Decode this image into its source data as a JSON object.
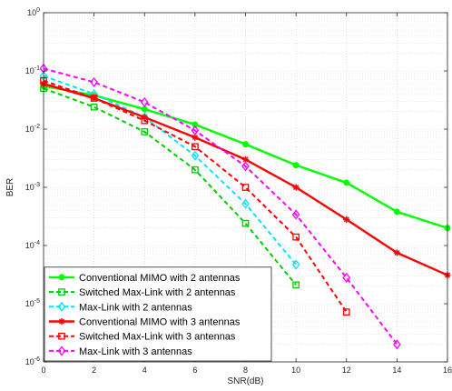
{
  "chart_data": {
    "type": "line",
    "xlabel": "SNR(dB)",
    "ylabel": "BER",
    "xlim": [
      0,
      16
    ],
    "ylim": [
      1e-06,
      1
    ],
    "yscale": "log",
    "x_ticks": [
      "0",
      "2",
      "4",
      "6",
      "8",
      "10",
      "12",
      "14",
      "16"
    ],
    "y_ticks": [
      {
        "base": "10",
        "exp": "0",
        "value": 1
      },
      {
        "base": "10",
        "exp": "-1",
        "value": 0.1
      },
      {
        "base": "10",
        "exp": "-2",
        "value": 0.01
      },
      {
        "base": "10",
        "exp": "-3",
        "value": 0.001
      },
      {
        "base": "10",
        "exp": "-4",
        "value": 0.0001
      },
      {
        "base": "10",
        "exp": "-5",
        "value": 1e-05
      },
      {
        "base": "10",
        "exp": "-6",
        "value": 1e-06
      }
    ],
    "grid": true,
    "legend_position": "bottom-left",
    "series": [
      {
        "name": "Conventional MIMO with 2 antennas",
        "color": "#00ff00",
        "dash": "solid",
        "marker": "circle",
        "x": [
          0,
          2,
          4,
          6,
          8,
          10,
          12,
          14,
          16
        ],
        "y": [
          0.055,
          0.038,
          0.022,
          0.012,
          0.0055,
          0.0024,
          0.0012,
          0.00038,
          0.0002
        ]
      },
      {
        "name": "Switched Max-Link with 2 antennas",
        "color": "#00cc00",
        "dash": "dashed",
        "marker": "square",
        "x": [
          0,
          2,
          4,
          6,
          8,
          10
        ],
        "y": [
          0.05,
          0.024,
          0.009,
          0.002,
          0.00024,
          2.1e-05
        ]
      },
      {
        "name": "Max-Link with 2 antennas",
        "color": "#00e5ff",
        "dash": "dashed",
        "marker": "diamond",
        "x": [
          0,
          2,
          4,
          6,
          8,
          10
        ],
        "y": [
          0.082,
          0.04,
          0.016,
          0.0035,
          0.00052,
          4.7e-05
        ]
      },
      {
        "name": "Conventional MIMO with 3 antennas",
        "color": "#ff0000",
        "dash": "solid",
        "marker": "asterisk",
        "x": [
          0,
          2,
          4,
          6,
          8,
          10,
          12,
          14,
          16
        ],
        "y": [
          0.06,
          0.034,
          0.016,
          0.0072,
          0.003,
          0.001,
          0.00028,
          7.5e-05,
          3.1e-05
        ]
      },
      {
        "name": "Switched Max-Link with 3 antennas",
        "color": "#ff0000",
        "dash": "dashed",
        "marker": "square",
        "x": [
          0,
          2,
          4,
          6,
          8,
          10,
          12
        ],
        "y": [
          0.068,
          0.034,
          0.014,
          0.005,
          0.001,
          0.00014,
          7.2e-06
        ]
      },
      {
        "name": "Max-Link with 3 antennas",
        "color": "#ff00ff",
        "dash": "dashed",
        "marker": "diamond",
        "x": [
          0,
          2,
          4,
          6,
          8,
          10,
          12,
          14
        ],
        "y": [
          0.11,
          0.064,
          0.029,
          0.0095,
          0.0023,
          0.00034,
          2.8e-05,
          2e-06
        ]
      }
    ]
  }
}
